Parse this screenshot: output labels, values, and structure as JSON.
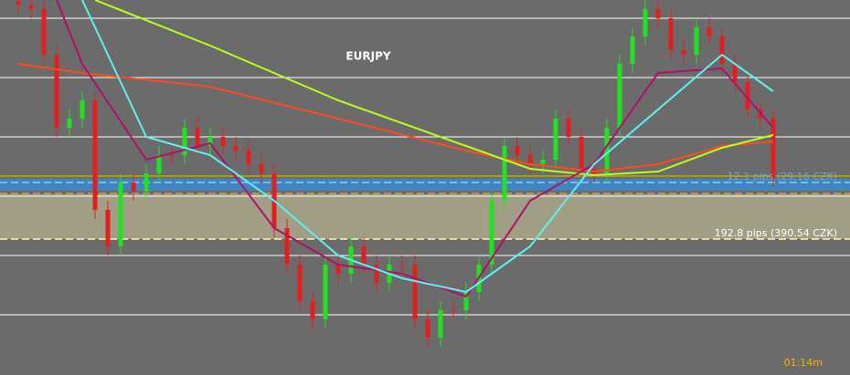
{
  "chart_data": {
    "type": "candlestick",
    "title": "EURJPY",
    "timer": "01:14m",
    "ylim": [
      0,
      1644
    ],
    "yticks": [
      264,
      524,
      784,
      1044,
      1304,
      1564
    ],
    "grid": true,
    "up_color": "#22e022",
    "down_color": "#e02020",
    "open": [
      1640,
      1624,
      1604,
      1404,
      1084,
      1124,
      1204,
      724,
      564,
      844,
      804,
      884,
      964,
      964,
      1084,
      1004,
      1044,
      1004,
      984,
      924,
      884,
      644,
      484,
      324,
      244,
      484,
      444,
      564,
      484,
      404,
      484,
      484,
      244,
      164,
      284,
      284,
      364,
      484,
      764,
      1004,
      964,
      924,
      944,
      1124,
      1044,
      904,
      884,
      1084,
      1364,
      1484,
      1604,
      1564,
      1424,
      1404,
      1524,
      1484,
      1364,
      1284,
      1164,
      1124
    ],
    "high": [
      1680,
      1664,
      1644,
      1444,
      1164,
      1244,
      1244,
      764,
      884,
      884,
      924,
      1004,
      1004,
      1124,
      1124,
      1084,
      1084,
      1044,
      1024,
      964,
      924,
      684,
      524,
      364,
      524,
      524,
      604,
      604,
      524,
      524,
      524,
      524,
      284,
      324,
      324,
      404,
      524,
      804,
      1044,
      1044,
      1004,
      984,
      1164,
      1164,
      1084,
      944,
      1124,
      1404,
      1524,
      1644,
      1644,
      1604,
      1464,
      1564,
      1564,
      1524,
      1404,
      1324,
      1204,
      1164
    ],
    "low": [
      1584,
      1564,
      1364,
      1044,
      1044,
      1084,
      684,
      524,
      524,
      764,
      764,
      844,
      924,
      924,
      964,
      964,
      964,
      944,
      884,
      844,
      604,
      444,
      284,
      204,
      204,
      404,
      404,
      444,
      364,
      364,
      444,
      204,
      124,
      124,
      244,
      244,
      324,
      444,
      724,
      924,
      884,
      884,
      904,
      1004,
      864,
      844,
      844,
      1044,
      1324,
      1444,
      1524,
      1384,
      1364,
      1364,
      1444,
      1324,
      1244,
      1124,
      1084,
      824
    ],
    "close": [
      1624,
      1604,
      1404,
      1084,
      1124,
      1204,
      724,
      564,
      844,
      804,
      884,
      964,
      964,
      1084,
      1004,
      1044,
      1004,
      984,
      924,
      884,
      644,
      484,
      324,
      244,
      484,
      444,
      564,
      484,
      404,
      484,
      484,
      244,
      164,
      284,
      284,
      364,
      484,
      764,
      1004,
      964,
      924,
      944,
      1124,
      1044,
      904,
      884,
      1084,
      1364,
      1484,
      1604,
      1564,
      1424,
      1404,
      1524,
      1484,
      1364,
      1284,
      1164,
      1124,
      864
    ],
    "series": [
      {
        "color": "#ff4a1c",
        "x": [
          0,
          5,
          15,
          25,
          35,
          40,
          45,
          50,
          55,
          59
        ],
        "values": [
          1364,
          1324,
          1264,
          1124,
          984,
          924,
          892,
          924,
          1004,
          1024
        ]
      },
      {
        "color": "#b8ff1c",
        "x": [
          6,
          15,
          25,
          35,
          40,
          45,
          50,
          55,
          59
        ],
        "values": [
          1644,
          1444,
          1204,
          1004,
          904,
          876,
          892,
          996,
          1052
        ]
      },
      {
        "color": "#b0106a",
        "x": [
          3,
          5,
          10,
          15,
          20,
          25,
          30,
          35,
          40,
          45,
          50,
          55,
          59
        ],
        "values": [
          1644,
          1364,
          944,
          1016,
          644,
          484,
          444,
          344,
          764,
          924,
          1324,
          1344,
          1084
        ]
      },
      {
        "color": "#5ff0f0",
        "x": [
          5,
          10,
          15,
          20,
          25,
          30,
          35,
          40,
          45,
          50,
          55,
          59
        ],
        "values": [
          1644,
          1044,
          964,
          764,
          524,
          424,
          364,
          564,
          924,
          1164,
          1404,
          1244
        ]
      }
    ],
    "zones": [
      {
        "from": 596,
        "to": 792,
        "color": "#a19e86"
      },
      {
        "from": 808,
        "to": 860,
        "color": "#3f86c0"
      }
    ],
    "levels": [
      {
        "value": 872,
        "color": "#b5ae00",
        "dashed": false
      },
      {
        "value": 844,
        "color": "#8fc6f0",
        "dashed": true
      },
      {
        "value": 796,
        "color": "#e39a3a",
        "dashed": true
      },
      {
        "value": 596,
        "color": "#fff7b0",
        "dashed": true
      }
    ],
    "annotations": [
      {
        "text": "12.1 pips (29.16 CZK)",
        "value": 844,
        "color": "#6aa8d8"
      },
      {
        "text": "192.8 pips (390.54 CZK)",
        "value": 596,
        "color": "#ffffff"
      }
    ]
  }
}
